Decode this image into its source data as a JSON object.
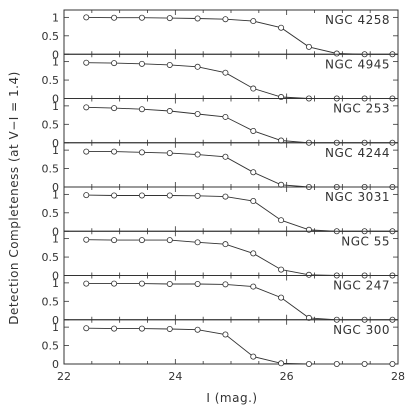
{
  "chart_data": {
    "type": "line",
    "xlabel": "I (mag.)",
    "ylabel": "Detection Completeness (at V−I = 1.4)",
    "xlim": [
      22,
      28
    ],
    "ylim": [
      0,
      1.2
    ],
    "x_ticks": [
      "22",
      "24",
      "26",
      "28"
    ],
    "y_ticks": [
      "0",
      "0.5",
      "1"
    ],
    "x": [
      22.4,
      22.9,
      23.4,
      23.9,
      24.4,
      24.9,
      25.4,
      25.9,
      26.4,
      26.9,
      27.4,
      27.9
    ],
    "series": [
      {
        "name": "NGC 4258",
        "values": [
          1.0,
          0.99,
          0.99,
          0.98,
          0.97,
          0.95,
          0.9,
          0.72,
          0.2,
          0.02,
          0.0,
          0.0
        ]
      },
      {
        "name": "NGC 4945",
        "values": [
          0.97,
          0.96,
          0.94,
          0.91,
          0.86,
          0.7,
          0.27,
          0.04,
          0.0,
          0.0,
          0.0,
          0.0
        ]
      },
      {
        "name": "NGC 253",
        "values": [
          0.96,
          0.94,
          0.91,
          0.86,
          0.78,
          0.7,
          0.32,
          0.06,
          0.0,
          0.0,
          0.0,
          0.0
        ]
      },
      {
        "name": "NGC 4244",
        "values": [
          0.96,
          0.96,
          0.94,
          0.92,
          0.88,
          0.82,
          0.4,
          0.06,
          0.0,
          0.0,
          0.0,
          0.0
        ]
      },
      {
        "name": "NGC 3031",
        "values": [
          0.98,
          0.97,
          0.97,
          0.97,
          0.96,
          0.94,
          0.82,
          0.3,
          0.04,
          0.0,
          0.0,
          0.0
        ]
      },
      {
        "name": "NGC 55",
        "values": [
          0.97,
          0.96,
          0.96,
          0.96,
          0.9,
          0.85,
          0.6,
          0.16,
          0.02,
          0.0,
          0.0,
          0.0
        ]
      },
      {
        "name": "NGC 247",
        "values": [
          0.98,
          0.98,
          0.98,
          0.97,
          0.97,
          0.96,
          0.9,
          0.6,
          0.05,
          0.0,
          0.0,
          0.0
        ]
      },
      {
        "name": "NGC 300",
        "values": [
          0.97,
          0.96,
          0.96,
          0.95,
          0.93,
          0.8,
          0.2,
          0.02,
          0.0,
          0.0,
          0.0,
          0.0
        ]
      }
    ]
  }
}
